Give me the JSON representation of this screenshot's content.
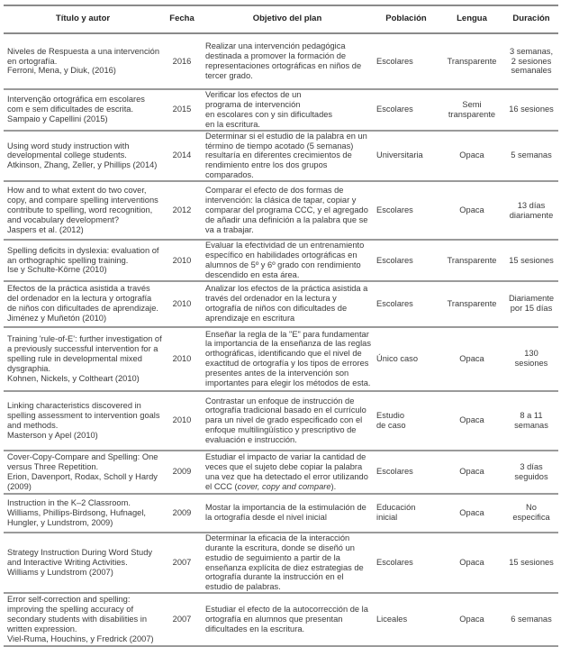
{
  "headers": {
    "title": "Título y autor",
    "year": "Fecha",
    "objective": "Objetivo del plan",
    "population": "Población",
    "language": "Lengua",
    "duration": "Duración"
  },
  "rows": [
    {
      "title": "Niveles de Respuesta a una intervención\nen ortografía.\nFerroni, Mena, y Diuk, (2016)",
      "year": "2016",
      "objective": "Realizar una intervención pedagógica\ndestinada a promover la formación de\nrepresentaciones ortográficas en niños de\ntercer grado.",
      "population": "Escolares",
      "language": "Transparente",
      "duration": "3 semanas,\n2 sesiones\nsemanales"
    },
    {
      "title": "Intervenção ortográfica em escolares\ncom e sem dificultades de escrita.\nSampaio y Capellini (2015)",
      "year": "2015",
      "objective": "Verificar los efectos de un\nprograma de intervención\nen escolares con y sin dificultades\nen la escritura.",
      "population": "Escolares",
      "language": "Semi\ntransparente",
      "duration": "16 sesiones"
    },
    {
      "title": "Using word study instruction with\ndevelopmental college students.\nAtkinson, Zhang, Zeller, y Phillips (2014)",
      "year": "2014",
      "objective": "Determinar si el estudio de la palabra en un\ntérmino de tiempo acotado (5 semanas)\nresultaría en diferentes crecimientos de\nrendimiento entre los dos grupos\ncomparados.",
      "population": "Universitaria",
      "language": "Opaca",
      "duration": "5 semanas"
    },
    {
      "title": "How and to what extent do two cover,\ncopy, and compare spelling interventions\ncontribute to spelling, word recognition,\nand vocabulary development?\nJaspers et al. (2012)",
      "year": "2012",
      "objective": "Comparar el efecto de dos formas de\nintervención: la clásica de tapar, copiar y\ncomparar del programa CCC, y el agregado\nde añadir una definición a la palabra que se\nva a trabajar.",
      "population": "Escolares",
      "language": "Opaca",
      "duration": "13 días\ndiariamente"
    },
    {
      "title": "Spelling deficits in dyslexia: evaluation of\nan orthographic spelling training.\nIse y Schulte-Körne (2010)",
      "year": "2010",
      "objective": "Evaluar la efectividad de un entrenamiento\nespecífico en habilidades ortográficas en\nalumnos de 5º y 6º grado con rendimiento\ndescendido en esta área.",
      "population": "Escolares",
      "language": "Transparente",
      "duration": "15 sesiones"
    },
    {
      "title": "Efectos de la práctica asistida a través\ndel ordenador en la lectura y ortografía\nde niños con dificultades de aprendizaje.\nJiménez y Muñetón (2010)",
      "year": "2010",
      "objective": "Analizar los efectos de la práctica asistida a\ntravés del ordenador en la lectura y\nortografía de niños con dificultades de\naprendizaje en escritura",
      "population": "Escolares",
      "language": "Transparente",
      "duration": "Diariamente\npor 15 días"
    },
    {
      "title": "Training 'rule-of-E': further investigation of\na previously successful intervention for a\nspelling rule in developmental mixed\ndysgraphia.\nKohnen, Nickels, y Coltheart (2010)",
      "year": "2010",
      "objective": "Enseñar la regla de la \"E\" para fundamentar\nla importancia de la enseñanza de las reglas\northográficas, identificando que el nivel de\nexactitud de ortografía y los tipos de errores\npresentes antes de la intervención son\nimportantes para elegir los métodos de esta.",
      "population": "Único caso",
      "language": "Opaca",
      "duration": "130\nsesiones"
    },
    {
      "title": "Linking characteristics discovered in\nspelling assessment to intervention goals\nand methods.\nMasterson y Apel (2010)",
      "year": "2010",
      "objective": "Contrastar un enfoque de instrucción de\nortografía tradicional basado en el currículo\npara un nivel de grado especificado con el\nenfoque multilingüístico y prescriptivo de\nevaluación e instrucción.",
      "population": "Estudio\nde caso",
      "language": "Opaca",
      "duration": "8 a 11\nsemanas"
    },
    {
      "title": "Cover-Copy-Compare and Spelling: One\nversus Three Repetition.\nErion, Davenport, Rodax, Scholl y Hardy\n(2009)",
      "year": "2009",
      "objective": "Estudiar el impacto de variar la cantidad de\nveces que el sujeto debe copiar la palabra\nuna vez que ha detectado el error utilizando\nel CCC (cover, copy and compare).",
      "population": "Escolares",
      "language": "Opaca",
      "duration": "3 días\nseguidos"
    },
    {
      "title": "Instruction in the K–2 Classroom.\nWilliams, Phillips-Birdsong, Hufnagel,\nHungler, y Lundstrom, 2009)",
      "year": "2009",
      "objective": "Mostar la importancia de la estimulación de\nla ortografía desde el nivel inicial",
      "population": "Educación\ninicial",
      "language": "Opaca",
      "duration": "No\nespecifica"
    },
    {
      "title": "Strategy Instruction During Word Study\nand Interactive Writing Activities.\nWilliams y Lundstrom (2007)",
      "year": "2007",
      "objective": "Determinar la eficacia de la interacción\ndurante la escritura, donde se diseñó un\nestudio de seguimiento a partir de la\nenseñanza explícita de diez estrategias de\nortografía durante la instrucción en el\nestudio de palabras.",
      "population": "Escolares",
      "language": "Opaca",
      "duration": "15 sesiones"
    },
    {
      "title": "Error self-correction and spelling:\nimproving the spelling accuracy of\nsecondary students with disabilities in\nwritten expression.\nViel-Ruma, Houchins, y Fredrick (2007)",
      "year": "2007",
      "objective": "Estudiar el efecto de la autocorrección de la\nortografía en alumnos que presentan\ndificultades en la escritura.",
      "population": "Liceales",
      "language": "Opaca",
      "duration": "6 semanas"
    }
  ]
}
